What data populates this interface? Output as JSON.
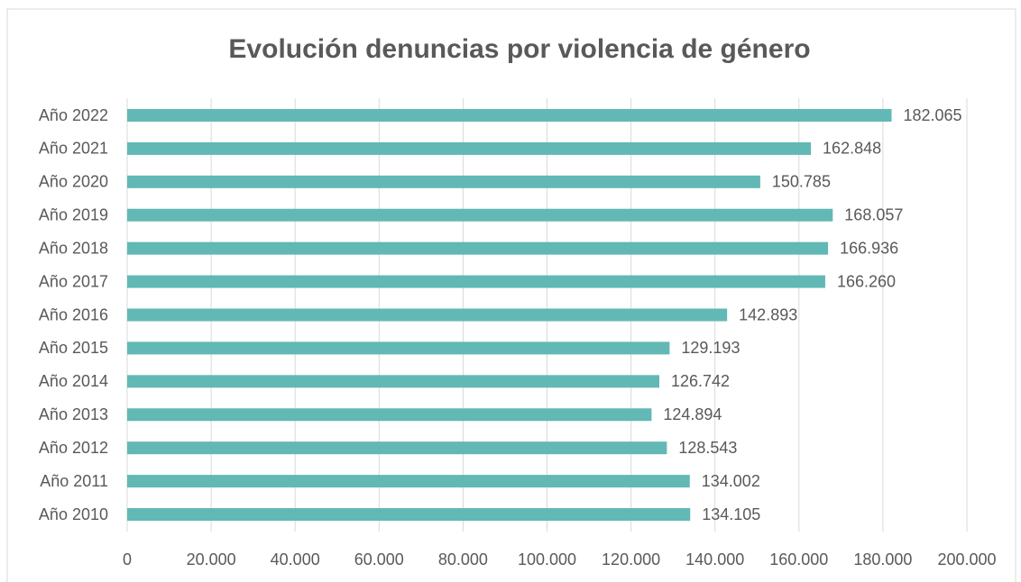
{
  "chart_data": {
    "type": "bar",
    "orientation": "horizontal",
    "title": "Evolución denuncias por violencia de género",
    "categories": [
      "Año 2022",
      "Año 2021",
      "Año 2020",
      "Año 2019",
      "Año 2018",
      "Año 2017",
      "Año 2016",
      "Año 2015",
      "Año 2014",
      "Año 2013",
      "Año 2012",
      "Año 2011",
      "Año 2010"
    ],
    "values": [
      182065,
      162848,
      150785,
      168057,
      166936,
      166260,
      142893,
      129193,
      126742,
      124894,
      128543,
      134002,
      134105
    ],
    "value_labels": [
      "182.065",
      "162.848",
      "150.785",
      "168.057",
      "166.936",
      "166.260",
      "142.893",
      "129.193",
      "126.742",
      "124.894",
      "128.543",
      "134.002",
      "134.105"
    ],
    "color": "#62b8b5",
    "xlim": [
      0,
      200000
    ],
    "xticks": [
      0,
      {
        "value": 20000,
        "label": "20.000"
      },
      {
        "value": 40000,
        "label": "40.000"
      },
      {
        "value": 60000,
        "label": "60.000"
      },
      {
        "value": 80000,
        "label": "80.000"
      },
      {
        "value": 100000,
        "label": "100.000"
      },
      {
        "value": 120000,
        "label": "120.000"
      },
      {
        "value": 140000,
        "label": "140.000"
      },
      {
        "value": 160000,
        "label": "160.000"
      },
      {
        "value": 180000,
        "label": "180.000"
      },
      {
        "value": 200000,
        "label": "200.000"
      }
    ],
    "grid": true
  }
}
